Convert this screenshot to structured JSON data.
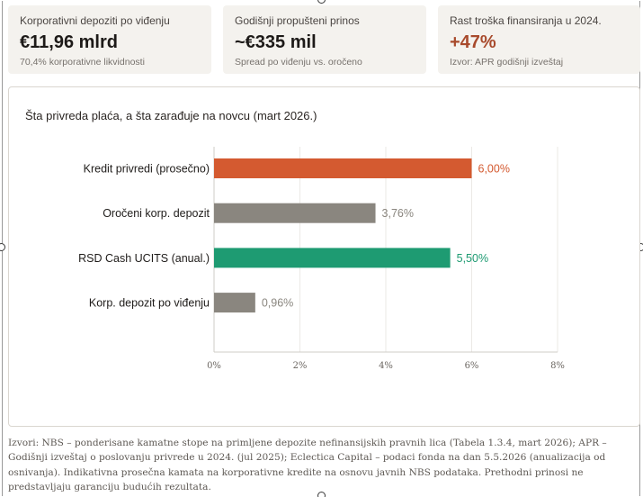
{
  "kpis": [
    {
      "label": "Korporativni depoziti po viđenju",
      "value": "€11,96 mlrd",
      "sub": "70,4% korporativne likvidnosti"
    },
    {
      "label": "Godišnji propušteni prinos",
      "value": "~€335 mil",
      "sub": "Spread po viđenju vs. oročeno"
    },
    {
      "label": "Rast troška finansiranja u 2024.",
      "value": "+47%",
      "sub": "Izvor: APR godišnji izveštaj"
    }
  ],
  "colors": {
    "accent_value": "#a84a2c",
    "card_bg": "#f4f2ee"
  },
  "chart_data": {
    "type": "bar",
    "orientation": "horizontal",
    "title": "Šta privreda plaća, a šta zarađuje na novcu (mart 2026.)",
    "categories": [
      "Kredit privredi (prosečno)",
      "Oročeni korp. depozit",
      "RSD Cash UCITS (anual.)",
      "Korp. depozit po viđenju"
    ],
    "values": [
      6.0,
      3.76,
      5.5,
      0.96
    ],
    "data_labels": [
      "6,00%",
      "3,76%",
      "5,50%",
      "0,96%"
    ],
    "bar_colors": [
      "#d45a30",
      "#8a867f",
      "#1e9b72",
      "#8a867f"
    ],
    "label_colors": [
      "#d45a30",
      "#8a867f",
      "#1e9b72",
      "#8a867f"
    ],
    "xlim": [
      0,
      8
    ],
    "xticks": [
      0,
      2,
      4,
      6,
      8
    ],
    "xtick_labels": [
      "0%",
      "2%",
      "4%",
      "6%",
      "8%"
    ],
    "xlabel": "",
    "ylabel": "",
    "grid": "vertical"
  },
  "footnote": "Izvori: NBS – ponderisane kamatne stope na primljene depozite nefinansijskih pravnih lica (Tabela 1.3.4, mart 2026); APR – Godišnji izveštaj o poslovanju privrede u 2024. (jul 2025); Eclectica Capital – podaci fonda na dan 5.5.2026 (anualizacija od osnivanja). Indikativna prosečna kamata na korporativne kredite na osnovu javnih NBS podataka. Prethodni prinosi ne predstavljaju garanciju budućih rezultata."
}
